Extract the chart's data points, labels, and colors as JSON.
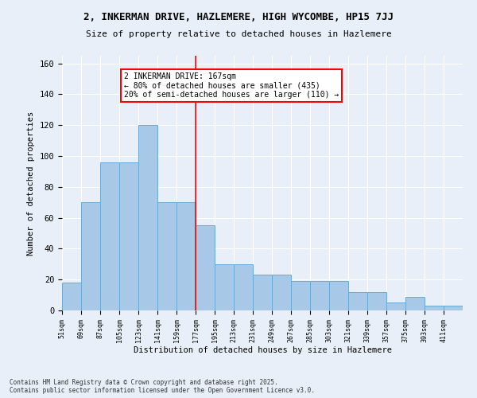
{
  "title1": "2, INKERMAN DRIVE, HAZLEMERE, HIGH WYCOMBE, HP15 7JJ",
  "title2": "Size of property relative to detached houses in Hazlemere",
  "xlabel": "Distribution of detached houses by size in Hazlemere",
  "ylabel": "Number of detached properties",
  "categories": [
    "51sqm",
    "69sqm",
    "87sqm",
    "105sqm",
    "123sqm",
    "141sqm",
    "159sqm",
    "177sqm",
    "195sqm",
    "213sqm",
    "231sqm",
    "249sqm",
    "267sqm",
    "285sqm",
    "303sqm",
    "321sqm",
    "339sqm",
    "357sqm",
    "375sqm",
    "393sqm",
    "411sqm"
  ],
  "heights": [
    18,
    70,
    96,
    96,
    120,
    70,
    70,
    55,
    30,
    30,
    23,
    23,
    19,
    19,
    19,
    12,
    12,
    5,
    9,
    3,
    3
  ],
  "bar_color": "#a8c8e8",
  "bar_edge_color": "#6aaad4",
  "vline_color": "red",
  "annotation_text": "2 INKERMAN DRIVE: 167sqm\n← 80% of detached houses are smaller (435)\n20% of semi-detached houses are larger (110) →",
  "ylim": [
    0,
    165
  ],
  "yticks": [
    0,
    20,
    40,
    60,
    80,
    100,
    120,
    140,
    160
  ],
  "footer1": "Contains HM Land Registry data © Crown copyright and database right 2025.",
  "footer2": "Contains public sector information licensed under the Open Government Licence v3.0.",
  "bg_color": "#e8eff8"
}
